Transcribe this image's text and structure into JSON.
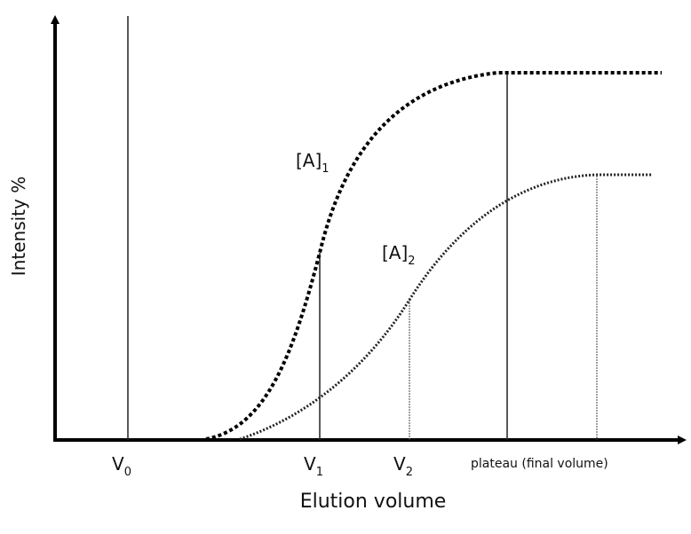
{
  "axes": {
    "y_label": "Intensity %",
    "x_label": "Elution volume"
  },
  "markers": [
    {
      "main": "V",
      "sub": "0"
    },
    {
      "main": "V",
      "sub": "1"
    },
    {
      "main": "V",
      "sub": "2"
    },
    {
      "main": "plateau (final volume)"
    }
  ],
  "curves": [
    {
      "main": "[A]",
      "sub": "1"
    },
    {
      "main": "[A]",
      "sub": "2"
    }
  ]
}
